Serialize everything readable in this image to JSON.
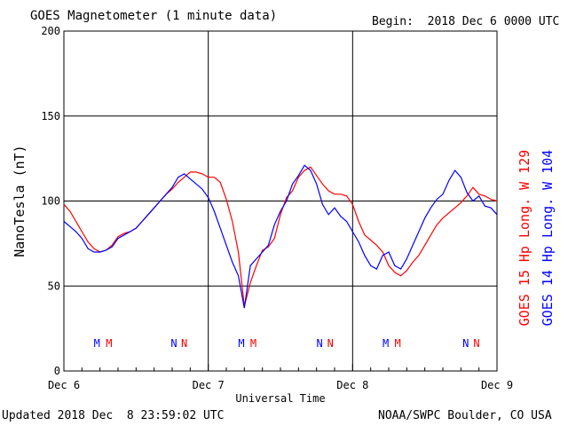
{
  "header": {
    "title": "GOES Magnetometer (1 minute data)",
    "begin": "Begin:  2018 Dec 6 0000 UTC"
  },
  "footer": {
    "updated": "Updated 2018 Dec  8 23:59:02 UTC",
    "credit": "NOAA/SWPC Boulder, CO USA"
  },
  "colors": {
    "goes15": "#ff0000",
    "goes14": "#0000ff",
    "grid": "#000000"
  },
  "chart_data": {
    "type": "line",
    "xlabel": "Universal Time",
    "ylabel": "NanoTesla (nT)",
    "ylim": [
      0,
      200
    ],
    "xlim_hours": [
      0,
      72
    ],
    "yticks": [
      "0",
      "50",
      "100",
      "150",
      "200"
    ],
    "xticks": [
      {
        "label": "Dec 6",
        "hour": 0
      },
      {
        "label": "Dec 7",
        "hour": 24
      },
      {
        "label": "Dec 8",
        "hour": 48
      },
      {
        "label": "Dec 9",
        "hour": 72
      }
    ],
    "legend": [
      {
        "key": "goes15",
        "label": "GOES 15 Hp  Long. W 129"
      },
      {
        "key": "goes14",
        "label": "GOES 14 Hp  Long. W 104"
      }
    ],
    "markers": [
      {
        "label": "M",
        "series": "goes14",
        "hour": 5.5
      },
      {
        "label": "M",
        "series": "goes15",
        "hour": 7.5
      },
      {
        "label": "N",
        "series": "goes14",
        "hour": 18.3
      },
      {
        "label": "N",
        "series": "goes15",
        "hour": 20.0
      },
      {
        "label": "M",
        "series": "goes14",
        "hour": 29.5
      },
      {
        "label": "M",
        "series": "goes15",
        "hour": 31.5
      },
      {
        "label": "N",
        "series": "goes14",
        "hour": 42.5
      },
      {
        "label": "N",
        "series": "goes15",
        "hour": 44.3
      },
      {
        "label": "M",
        "series": "goes14",
        "hour": 53.5
      },
      {
        "label": "M",
        "series": "goes15",
        "hour": 55.5
      },
      {
        "label": "N",
        "series": "goes14",
        "hour": 66.8
      },
      {
        "label": "N",
        "series": "goes15",
        "hour": 68.6
      }
    ],
    "series": [
      {
        "name": "GOES 15 Hp  Long. W 129",
        "key": "goes15",
        "x": [
          0,
          1,
          2,
          3,
          4,
          5,
          6,
          7,
          8,
          9,
          10,
          11,
          12,
          13,
          14,
          15,
          16,
          17,
          18,
          19,
          20,
          21,
          22,
          23,
          24,
          25,
          26,
          27,
          28,
          29,
          30,
          31,
          32,
          33,
          34,
          35,
          36,
          37,
          38,
          39,
          40,
          41,
          42,
          43,
          44,
          45,
          46,
          47,
          48,
          49,
          50,
          51,
          52,
          53,
          54,
          55,
          56,
          57,
          58,
          59,
          60,
          61,
          62,
          63,
          64,
          65,
          66,
          67,
          68,
          69,
          70,
          71,
          72
        ],
        "y": [
          98,
          94,
          88,
          82,
          76,
          72,
          70,
          71,
          74,
          79,
          81,
          82,
          84,
          88,
          92,
          96,
          100,
          104,
          107,
          111,
          114,
          117,
          117,
          116,
          114,
          114,
          111,
          101,
          88,
          70,
          38,
          52,
          62,
          71,
          73,
          78,
          92,
          102,
          106,
          114,
          118,
          120,
          115,
          110,
          106,
          104,
          104,
          103,
          98,
          88,
          80,
          77,
          74,
          70,
          62,
          58,
          56,
          59,
          64,
          68,
          74,
          80,
          86,
          90,
          93,
          96,
          99,
          103,
          108,
          104,
          103,
          101,
          100
        ]
      },
      {
        "name": "GOES 14 Hp  Long. W 104",
        "key": "goes14",
        "x": [
          0,
          1,
          2,
          3,
          4,
          5,
          6,
          7,
          8,
          9,
          10,
          11,
          12,
          13,
          14,
          15,
          16,
          17,
          18,
          19,
          20,
          21,
          22,
          23,
          24,
          25,
          26,
          27,
          28,
          29,
          30,
          31,
          32,
          33,
          34,
          35,
          36,
          37,
          38,
          39,
          40,
          41,
          42,
          43,
          44,
          45,
          46,
          47,
          48,
          49,
          50,
          51,
          52,
          53,
          54,
          55,
          56,
          57,
          58,
          59,
          60,
          61,
          62,
          63,
          64,
          65,
          66,
          67,
          68,
          69,
          70,
          71,
          72
        ],
        "y": [
          88,
          85,
          82,
          78,
          72,
          70,
          70,
          71,
          73,
          78,
          80,
          82,
          84,
          88,
          92,
          96,
          100,
          104,
          108,
          114,
          116,
          113,
          110,
          107,
          102,
          94,
          84,
          74,
          64,
          56,
          37,
          62,
          66,
          70,
          74,
          86,
          94,
          100,
          110,
          115,
          121,
          118,
          110,
          98,
          92,
          96,
          91,
          88,
          82,
          76,
          68,
          62,
          60,
          68,
          70,
          62,
          60,
          66,
          74,
          82,
          90,
          96,
          101,
          104,
          112,
          118,
          114,
          105,
          100,
          103,
          97,
          96,
          92
        ]
      }
    ]
  }
}
